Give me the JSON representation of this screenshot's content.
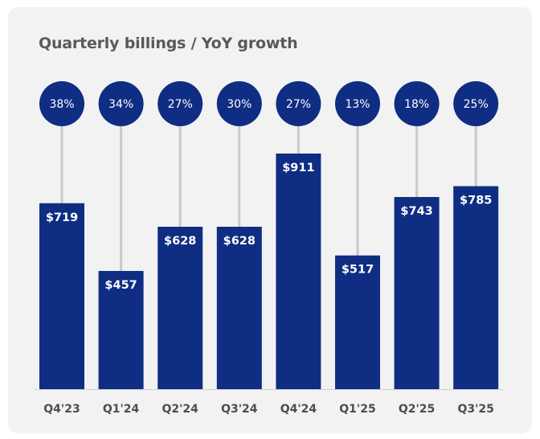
{
  "chart_data": {
    "type": "bar",
    "title": "Quarterly billings / YoY growth",
    "categories": [
      "Q4'23",
      "Q1'24",
      "Q2'24",
      "Q3'24",
      "Q4'24",
      "Q1'25",
      "Q2'25",
      "Q3'25"
    ],
    "series": [
      {
        "values": [
          719,
          457,
          628,
          628,
          911,
          517,
          743,
          785
        ],
        "value_labels": [
          "$719",
          "$457",
          "$628",
          "$628",
          "$911",
          "$517",
          "$743",
          "$785"
        ]
      }
    ],
    "yoy_growth": [
      "38%",
      "34%",
      "27%",
      "30%",
      "27%",
      "13%",
      "18%",
      "25%"
    ],
    "ylim": [
      0,
      1000
    ],
    "grid": false,
    "legend": "none",
    "colors": {
      "bar": "#0f2d82",
      "growth_bubble": "#0f2d82",
      "stem": "#c9c9c9",
      "card_background": "#f2f2f2",
      "title": "#595959"
    }
  }
}
